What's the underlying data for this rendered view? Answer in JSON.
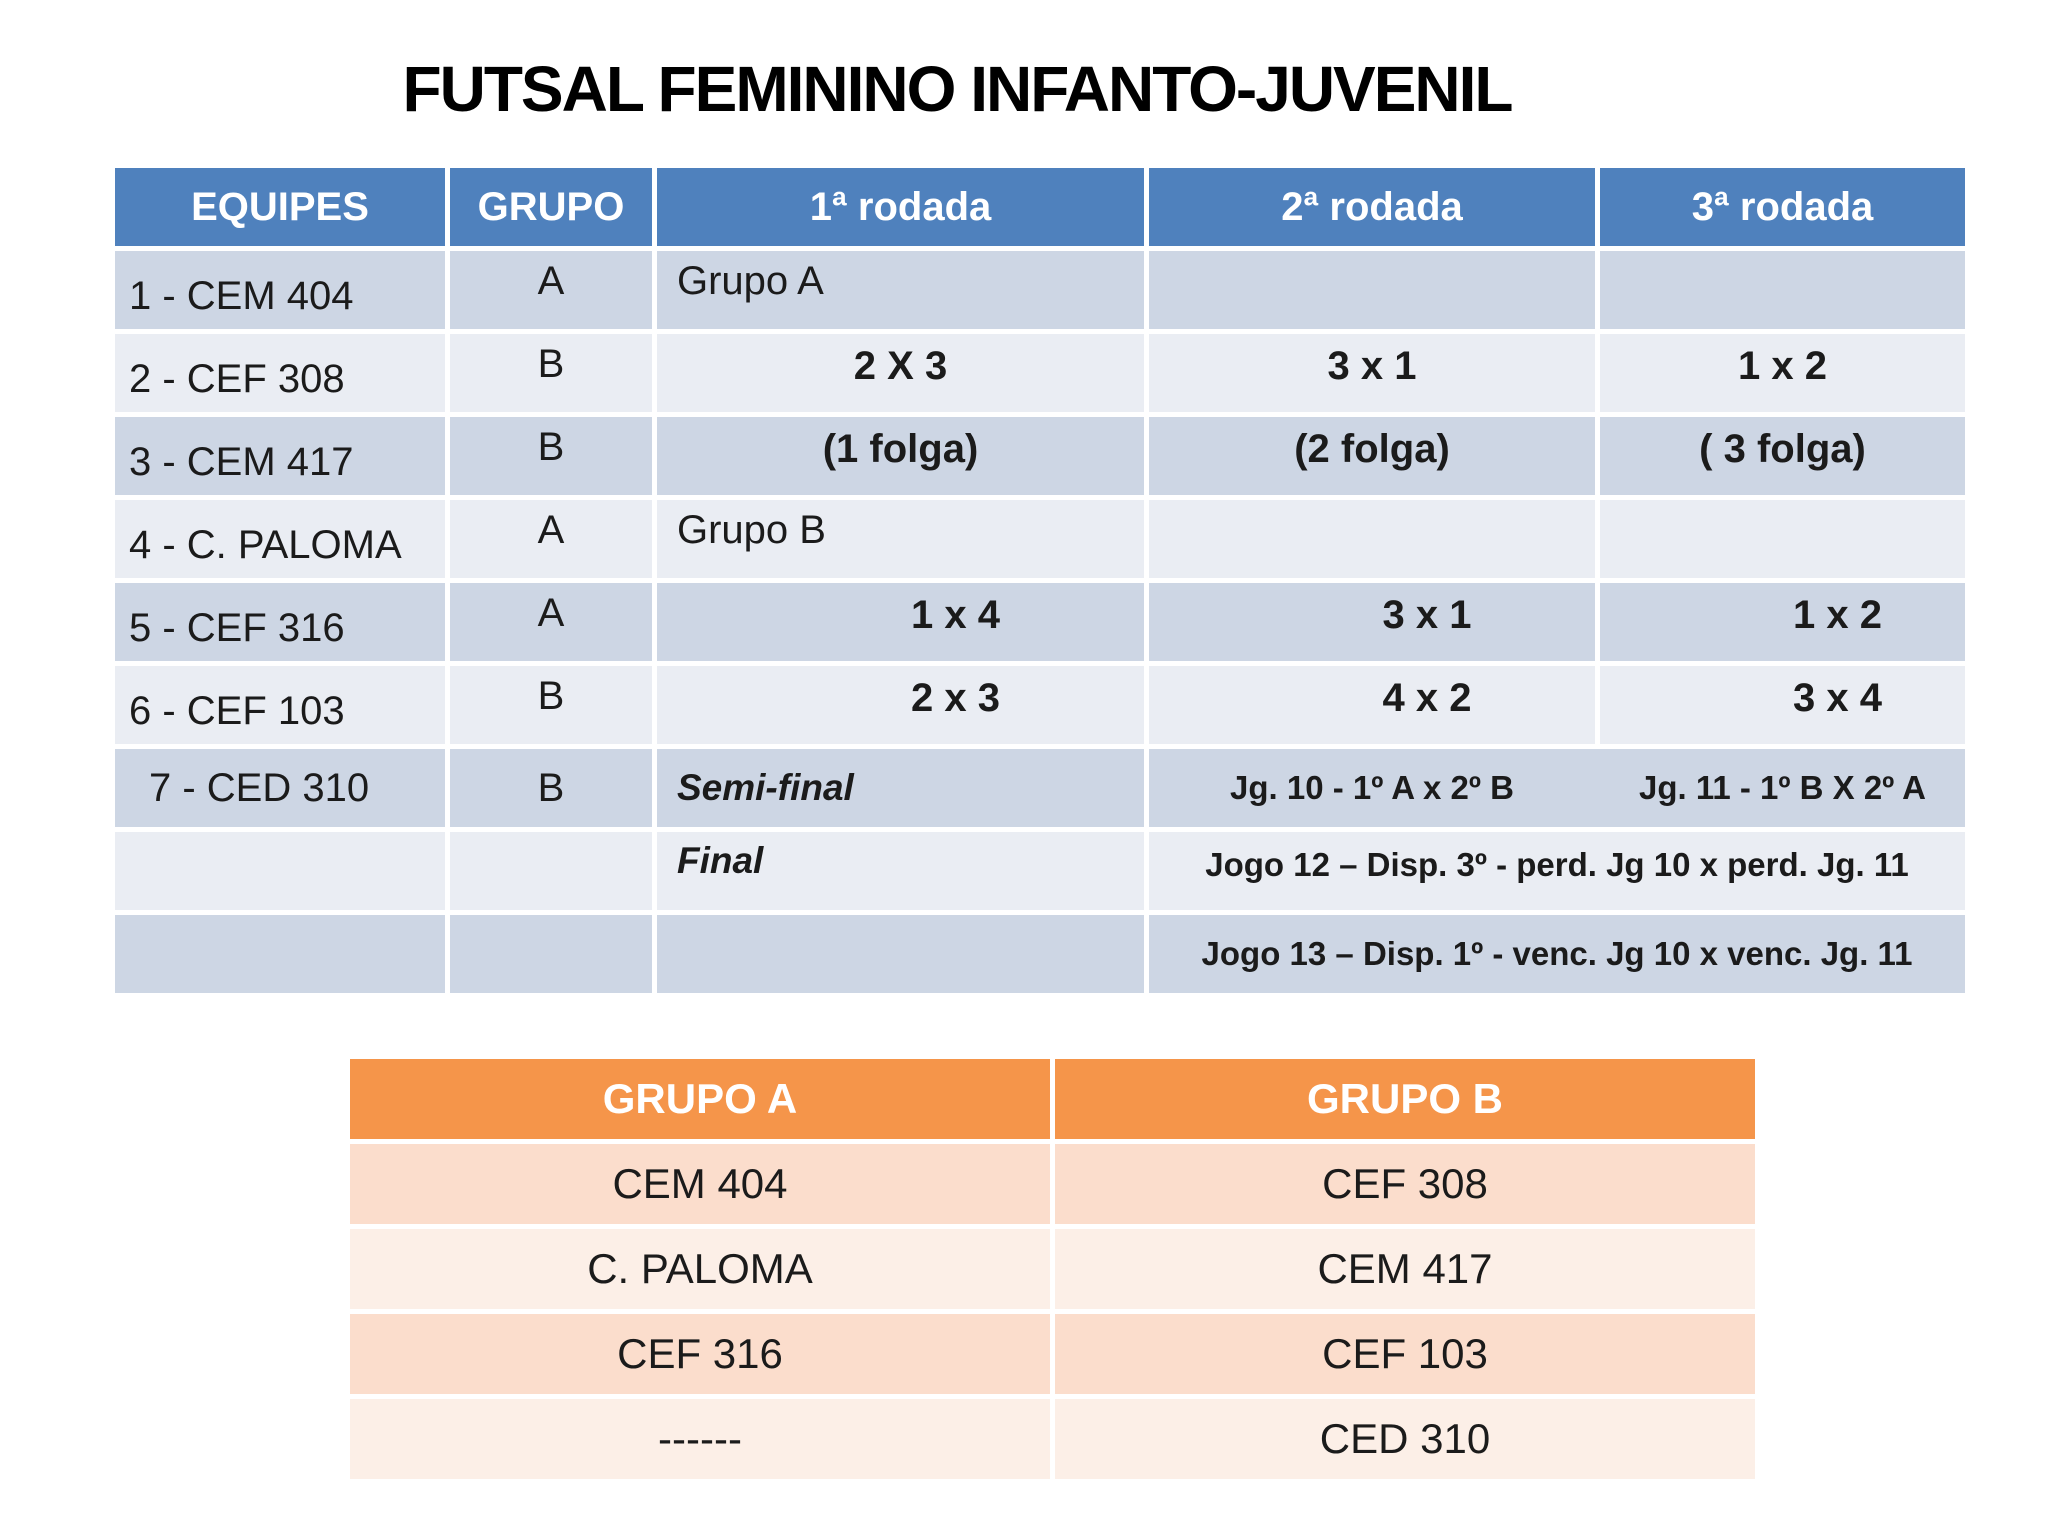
{
  "title": "FUTSAL FEMININO INFANTO-JUVENIL",
  "colors": {
    "schedule_header": "#4F81BD",
    "schedule_row_dark": "#CDD6E4",
    "schedule_row_light": "#EAEDF3",
    "groups_header": "#F5954A",
    "groups_row_dark": "#FBDDCC",
    "groups_row_light": "#FCEFE7",
    "text": "#1b1b1b"
  },
  "schedule": {
    "headers": [
      "EQUIPES",
      "GRUPO",
      "1ª rodada",
      "2ª rodada",
      "3ª rodada"
    ],
    "rows": [
      {
        "equipe": "1 - CEM 404",
        "grupo": "A",
        "c1": "Grupo A",
        "c2": "",
        "c3": ""
      },
      {
        "equipe": "2 - CEF 308",
        "grupo": "B",
        "c1": "2 X 3",
        "c2": "3 x 1",
        "c3": "1 x 2"
      },
      {
        "equipe": "3 - CEM 417",
        "grupo": "B",
        "c1": "(1 folga)",
        "c2": "(2 folga)",
        "c3": "( 3 folga)"
      },
      {
        "equipe": "4 - C. PALOMA",
        "grupo": "A",
        "c1": "Grupo B",
        "c2": "",
        "c3": ""
      },
      {
        "equipe": "5 - CEF 316",
        "grupo": "A",
        "c1": "1 x 4",
        "c2": "3 x 1",
        "c3": "1 x 2"
      },
      {
        "equipe": "6 - CEF 103",
        "grupo": "B",
        "c1": "2 x 3",
        "c2": "4 x 2",
        "c3": "3 x 4"
      },
      {
        "equipe": "7 - CED 310",
        "grupo": "B",
        "c1": "Semi-final",
        "c2": "Jg. 10 - 1º A x 2º B",
        "c3": "Jg. 11 - 1º B X 2º A"
      },
      {
        "equipe": "",
        "grupo": "",
        "c1": "Final",
        "c23": "Jogo 12 – Disp. 3º - perd. Jg 10 x perd. Jg. 11"
      },
      {
        "equipe": "",
        "grupo": "",
        "c1": "",
        "c23": "Jogo 13 – Disp. 1º - venc. Jg 10 x venc. Jg. 11"
      }
    ]
  },
  "groups": {
    "headers": [
      "GRUPO A",
      "GRUPO B"
    ],
    "rows": [
      [
        "CEM 404",
        "CEF 308"
      ],
      [
        "C. PALOMA",
        "CEM 417"
      ],
      [
        "CEF 316",
        "CEF 103"
      ],
      [
        "------",
        "CED 310"
      ]
    ]
  }
}
